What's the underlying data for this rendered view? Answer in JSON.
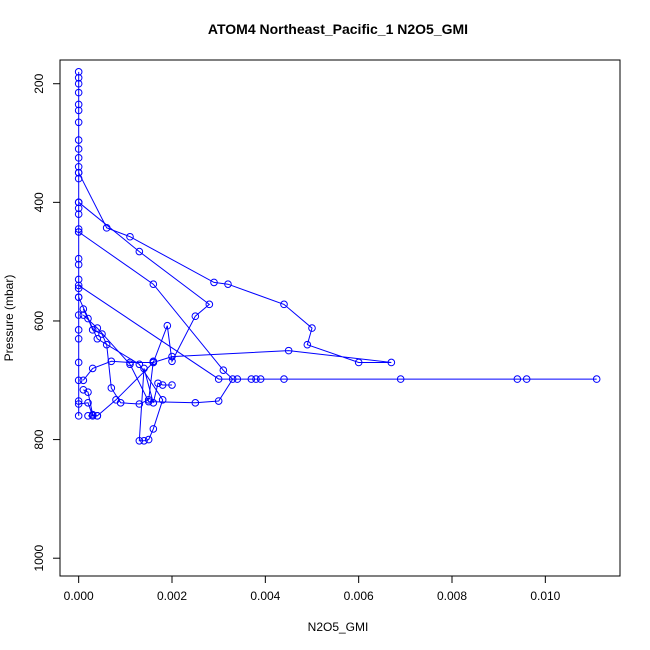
{
  "chart_data": {
    "type": "line",
    "title": "ATOM4 Northeast_Pacific_1 N2O5_GMI",
    "xlabel": "N2O5_GMI",
    "ylabel": "Pressure (mbar)",
    "xlim": [
      -0.0004,
      0.0116
    ],
    "ylim": [
      1030,
      160
    ],
    "y_reversed": true,
    "grid": false,
    "legend": "none",
    "marker": "open-circle",
    "color": "#0000ff",
    "x_ticks": [
      0.0,
      0.002,
      0.004,
      0.006,
      0.008,
      0.01
    ],
    "x_tick_labels": [
      "0.000",
      "0.002",
      "0.004",
      "0.006",
      "0.008",
      "0.010"
    ],
    "y_ticks": [
      200,
      400,
      600,
      800,
      1000
    ],
    "y_tick_labels": [
      "200",
      "400",
      "600",
      "800",
      "1000"
    ],
    "series": [
      {
        "x": [
          0.0,
          0.0,
          0.0,
          0.0,
          0.0,
          0.0,
          0.0,
          0.0,
          0.0,
          0.0,
          0.0,
          0.0,
          0.0,
          0.0,
          0.0,
          0.0,
          0.0,
          0.0,
          0.0,
          0.0,
          0.0,
          0.0,
          0.0,
          0.0,
          0.0,
          0.0,
          0.0,
          0.0,
          0.0,
          0.0
        ],
        "y": [
          180,
          190,
          200,
          215,
          235,
          245,
          265,
          295,
          310,
          325,
          340,
          350,
          360,
          400,
          410,
          420,
          445,
          450,
          495,
          505,
          530,
          545,
          560,
          590,
          615,
          630,
          670,
          700,
          735,
          760
        ]
      },
      {
        "x": [
          0.0,
          0.0006,
          0.0011,
          0.0029,
          0.0032,
          0.0044,
          0.005,
          0.0049,
          0.006,
          0.0067,
          0.0045,
          0.002,
          0.0016,
          0.0011,
          0.0007,
          0.0003,
          0.0001
        ],
        "y": [
          350,
          443,
          458,
          535,
          538,
          572,
          612,
          640,
          670,
          670,
          650,
          660,
          670,
          670,
          668,
          680,
          700
        ]
      },
      {
        "x": [
          0.0,
          0.0013,
          0.0028,
          0.0025,
          0.002,
          0.0019,
          0.0016,
          0.0008,
          0.0004,
          0.0002
        ],
        "y": [
          400,
          483,
          572,
          592,
          668,
          608,
          670,
          733,
          760,
          760
        ]
      },
      {
        "x": [
          0.0,
          0.0016,
          0.0031,
          0.0033,
          0.003,
          0.0025,
          0.0015,
          0.0011,
          0.0004,
          0.0001
        ],
        "y": [
          450,
          538,
          683,
          698,
          735,
          738,
          736,
          673,
          612,
          590
        ]
      },
      {
        "x": [
          0.0,
          0.003,
          0.0034,
          0.0037,
          0.0038,
          0.0039,
          0.0044,
          0.0069,
          0.0094,
          0.0096,
          0.0111
        ],
        "y": [
          540,
          698,
          698,
          698,
          698,
          698,
          698,
          698,
          698,
          698,
          698
        ]
      },
      {
        "x": [
          0.0,
          0.0004,
          0.0013,
          0.0018,
          0.0016,
          0.0015,
          0.0014,
          0.0013,
          0.0014,
          0.0016,
          0.0017,
          0.0018,
          0.002
        ],
        "y": [
          560,
          630,
          673,
          733,
          782,
          800,
          802,
          802,
          680,
          738,
          705,
          708,
          708
        ]
      },
      {
        "x": [
          0.0001,
          0.0002,
          0.0003,
          0.0005,
          0.0006,
          0.0007,
          0.0009,
          0.0013,
          0.0015,
          0.0016
        ],
        "y": [
          580,
          596,
          615,
          622,
          640,
          713,
          738,
          740,
          733,
          668
        ]
      },
      {
        "x": [
          0.0,
          0.0002,
          0.0003,
          0.0004,
          0.0003,
          0.0002,
          0.0001
        ],
        "y": [
          740,
          738,
          760,
          760,
          758,
          720,
          716
        ]
      }
    ]
  }
}
